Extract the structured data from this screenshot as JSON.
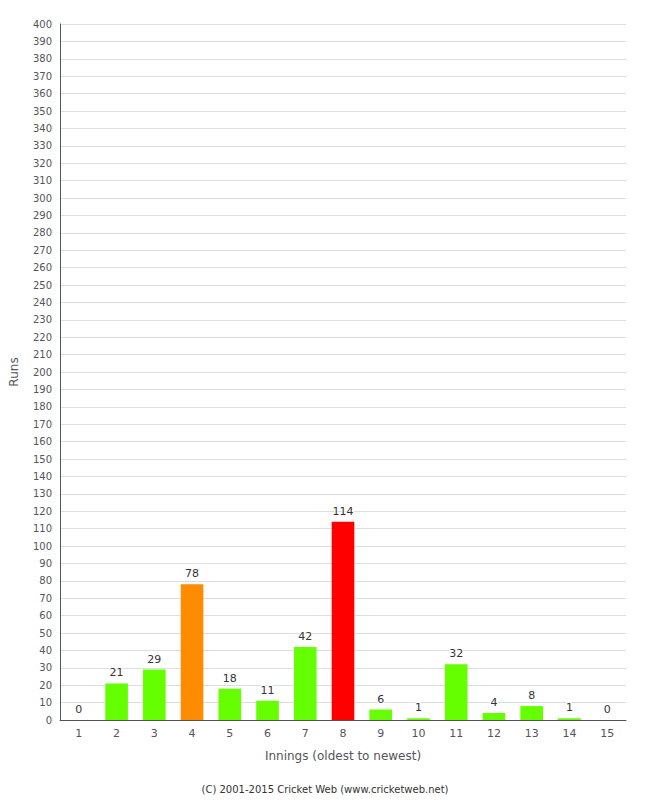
{
  "chart_data": {
    "type": "bar",
    "xlabel": "Innings (oldest to newest)",
    "ylabel": "Runs",
    "categories": [
      1,
      2,
      3,
      4,
      5,
      6,
      7,
      8,
      9,
      10,
      11,
      12,
      13,
      14,
      15
    ],
    "values": [
      0,
      21,
      29,
      78,
      18,
      11,
      42,
      114,
      6,
      1,
      32,
      4,
      8,
      1,
      0
    ],
    "colors": [
      "#66ff00",
      "#66ff00",
      "#66ff00",
      "#ff8c00",
      "#66ff00",
      "#66ff00",
      "#66ff00",
      "#ff0000",
      "#66ff00",
      "#66ff00",
      "#66ff00",
      "#66ff00",
      "#66ff00",
      "#66ff00",
      "#66ff00"
    ],
    "ylim": [
      0,
      400
    ],
    "yticks": [
      0,
      10,
      20,
      30,
      40,
      50,
      60,
      70,
      80,
      90,
      100,
      110,
      120,
      130,
      140,
      150,
      160,
      170,
      180,
      190,
      200,
      210,
      220,
      230,
      240,
      250,
      260,
      270,
      280,
      290,
      300,
      310,
      320,
      330,
      340,
      350,
      360,
      370,
      380,
      390,
      400
    ],
    "grid": true,
    "data_labels": true,
    "annotations": [
      "(C) 2001-2015 Cricket Web (www.cricketweb.net)"
    ]
  }
}
